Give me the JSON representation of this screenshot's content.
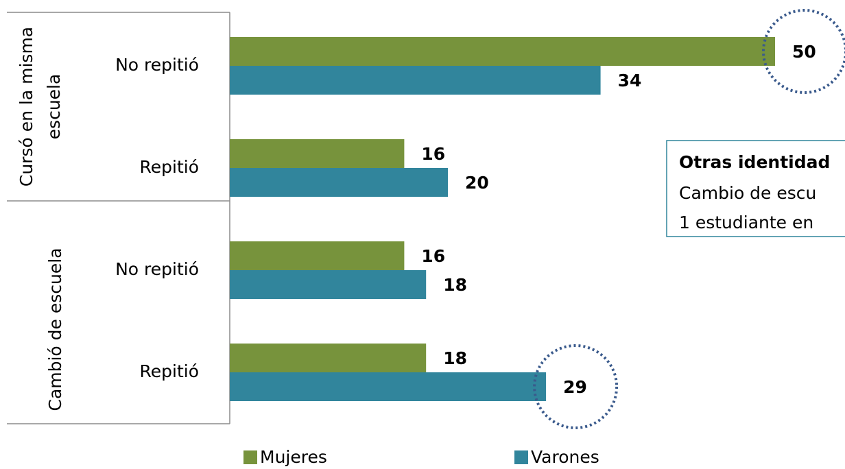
{
  "chart_data": {
    "type": "bar",
    "orientation": "horizontal",
    "groups": [
      {
        "label": [
          "Cursó en la misma",
          "escuela"
        ]
      },
      {
        "label": [
          "Cambió de escuela"
        ]
      }
    ],
    "categories": [
      "No repitió",
      "Repitió",
      "No repitió",
      "Repitió"
    ],
    "series": [
      {
        "name": "Mujeres",
        "color": "#77933c",
        "values": [
          50,
          16,
          16,
          18
        ]
      },
      {
        "name": "Varones",
        "color": "#31859c",
        "values": [
          34,
          20,
          18,
          29
        ]
      }
    ],
    "xlim": [
      0,
      50
    ],
    "legend": "bottom",
    "note": {
      "title": "Otras identidad",
      "lines": [
        "Cambio de escu",
        "1 estudiante en"
      ]
    }
  }
}
